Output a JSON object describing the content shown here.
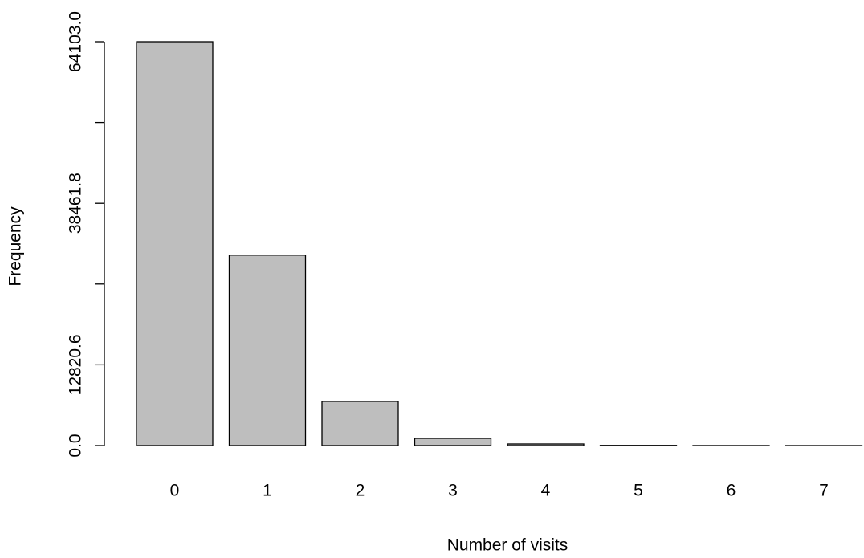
{
  "chart_data": {
    "type": "bar",
    "x_label": "Number of visits",
    "y_label": "Frequency",
    "categories": [
      "0",
      "1",
      "2",
      "3",
      "4",
      "5",
      "6",
      "7"
    ],
    "values": [
      64103,
      30230,
      7020,
      1150,
      255,
      30,
      5,
      1
    ],
    "color": "#bebebe",
    "ylim": [
      0,
      64103
    ],
    "yticks": [
      {
        "value": 0,
        "label": "0.0"
      },
      12820.6,
      {
        "value": 25641.2,
        "label": null
      },
      38461.8,
      {
        "value": 51282.4,
        "label": null
      },
      {
        "value": 64103,
        "label": "64103.0"
      }
    ],
    "grid": false
  }
}
